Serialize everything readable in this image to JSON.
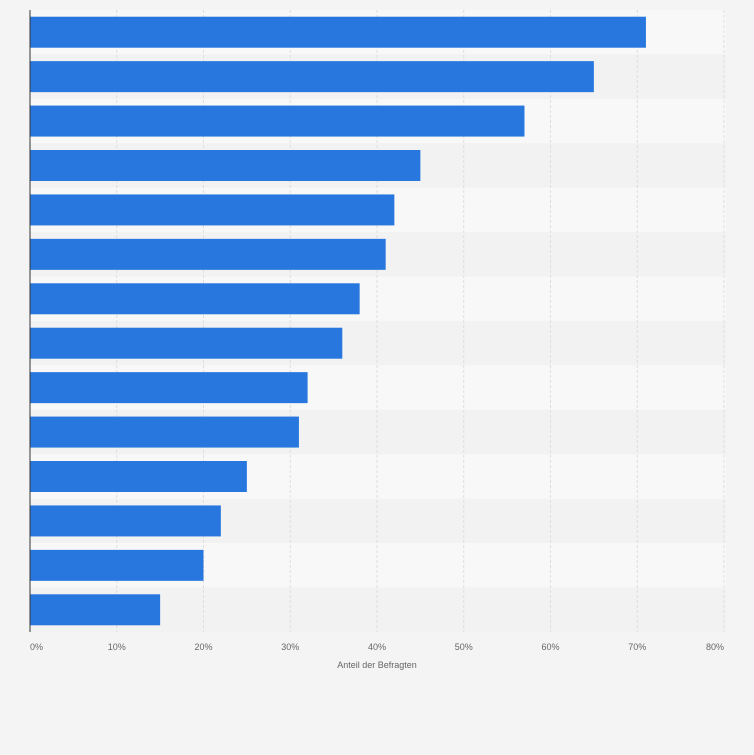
{
  "chart_data": {
    "type": "bar",
    "orientation": "horizontal",
    "title": "",
    "xlabel": "Anteil der Befragten",
    "ylabel": "",
    "xlim": [
      0,
      80
    ],
    "x_ticks": [
      "0%",
      "10%",
      "20%",
      "30%",
      "40%",
      "50%",
      "60%",
      "70%",
      "80%"
    ],
    "categories": [
      "",
      "",
      "",
      "",
      "",
      "",
      "",
      "",
      "",
      "",
      "",
      "",
      "",
      ""
    ],
    "values": [
      71,
      65,
      57,
      45,
      42,
      41,
      38,
      36,
      32,
      31,
      25,
      22,
      20,
      15
    ],
    "unit": "%",
    "grid": true,
    "legend": "none"
  },
  "colors": {
    "bar": "#2877de",
    "background": "#f4f4f4",
    "band_light": "#f8f8f8",
    "band_dark": "#f2f2f2",
    "grid": "#dedede",
    "axis": "#333333",
    "text": "#666666"
  }
}
